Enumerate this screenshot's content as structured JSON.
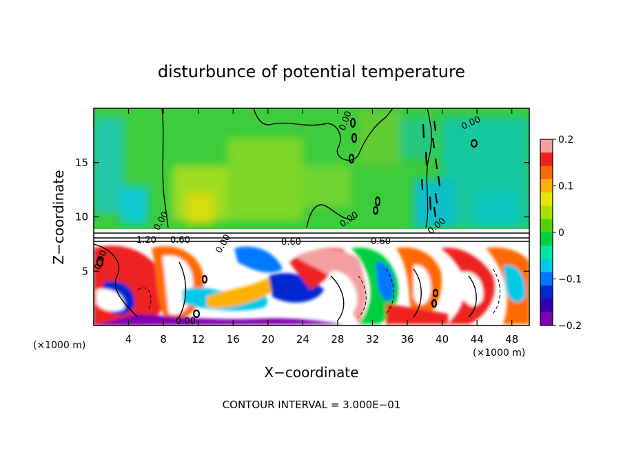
{
  "chart_data": {
    "type": "heatmap",
    "title": "disturbunce of potential temperature",
    "xlabel": "X−coordinate",
    "ylabel": "Z−coordinate",
    "x_unit": "(×1000 m)",
    "x_unit_right": "(×1000 m)",
    "xlim": [
      0,
      50
    ],
    "ylim": [
      0,
      20
    ],
    "x_ticks": [
      4,
      8,
      12,
      16,
      20,
      24,
      28,
      32,
      36,
      40,
      44,
      48
    ],
    "y_ticks": [
      5,
      10,
      15
    ],
    "colorbar": {
      "ticks": [
        "0.2",
        "0.1",
        "0",
        "−0.1",
        "−0.2"
      ],
      "range": [
        -0.2,
        0.2
      ],
      "colors": [
        "#f4a0a0",
        "#ee2020",
        "#ff6a00",
        "#ffb000",
        "#e6e600",
        "#a8e000",
        "#50d000",
        "#00d040",
        "#00e6a0",
        "#00c8e6",
        "#0078ff",
        "#0028d0",
        "#3000b0",
        "#8000b0"
      ]
    },
    "contour_labels": [
      "0.00",
      "0.00",
      "0.00",
      "0.00",
      "0.00",
      "1.20",
      "0.60",
      "0.60",
      "0.60",
      "0.00",
      "0.00",
      "0.00"
    ],
    "footer": "CONTOUR INTERVAL = 3.000E−01"
  }
}
